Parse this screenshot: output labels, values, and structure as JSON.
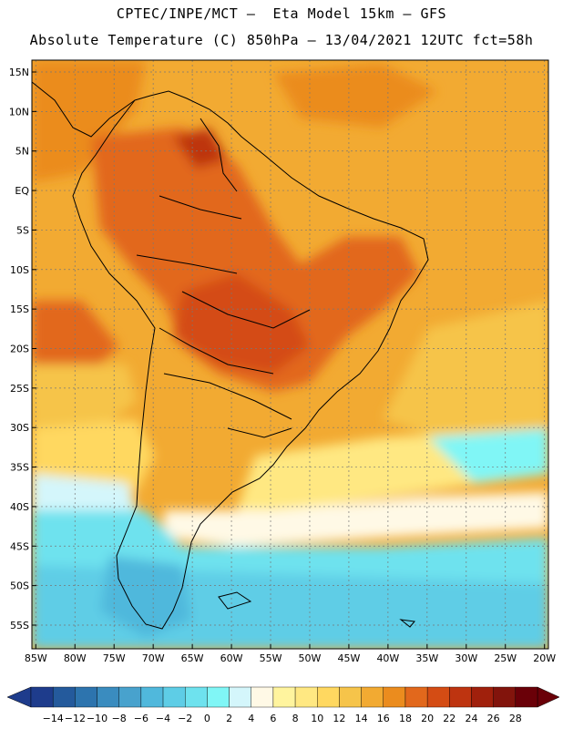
{
  "header": {
    "line1": "CPTEC/INPE/MCT –  Eta Model 15km – GFS",
    "line2": "Absolute Temperature (C) 850hPa – 13/04/2021 12UTC fct=58h"
  },
  "map": {
    "lat_labels": [
      "15N",
      "10N",
      "5N",
      "EQ",
      "5S",
      "10S",
      "15S",
      "20S",
      "25S",
      "30S",
      "35S",
      "40S",
      "45S",
      "50S",
      "55S"
    ],
    "lat_values": [
      15,
      10,
      5,
      0,
      -5,
      -10,
      -15,
      -20,
      -25,
      -30,
      -35,
      -40,
      -45,
      -50,
      -55
    ],
    "lon_labels": [
      "85W",
      "80W",
      "75W",
      "70W",
      "65W",
      "60W",
      "55W",
      "50W",
      "45W",
      "40W",
      "35W",
      "30W",
      "25W",
      "20W"
    ],
    "lon_values": [
      -85,
      -80,
      -75,
      -70,
      -65,
      -60,
      -55,
      -50,
      -45,
      -40,
      -35,
      -30,
      -25,
      -20
    ],
    "lon_range": [
      -85.5,
      -19.5
    ],
    "lat_range": [
      -58,
      16.5
    ],
    "grid": true
  },
  "colorbar": {
    "levels": [
      -14,
      -12,
      -10,
      -8,
      -6,
      -4,
      -2,
      0,
      2,
      4,
      6,
      8,
      10,
      12,
      14,
      16,
      18,
      20,
      22,
      24,
      26,
      28
    ],
    "colors": [
      "#1e3c8c",
      "#245a9c",
      "#2d74ae",
      "#3a8cbf",
      "#48a2cd",
      "#50b8dc",
      "#5ecde6",
      "#6ee2ee",
      "#80f6f6",
      "#d4f6fb",
      "#fff9e6",
      "#fff49e",
      "#ffe882",
      "#ffd860",
      "#f6c44a",
      "#f2aa32",
      "#eb8c1e",
      "#e2681c",
      "#d44c14",
      "#be3410",
      "#a0200c",
      "#82140c",
      "#6a0008"
    ],
    "under_color": "#1e3c8c",
    "over_color": "#6a0008"
  }
}
